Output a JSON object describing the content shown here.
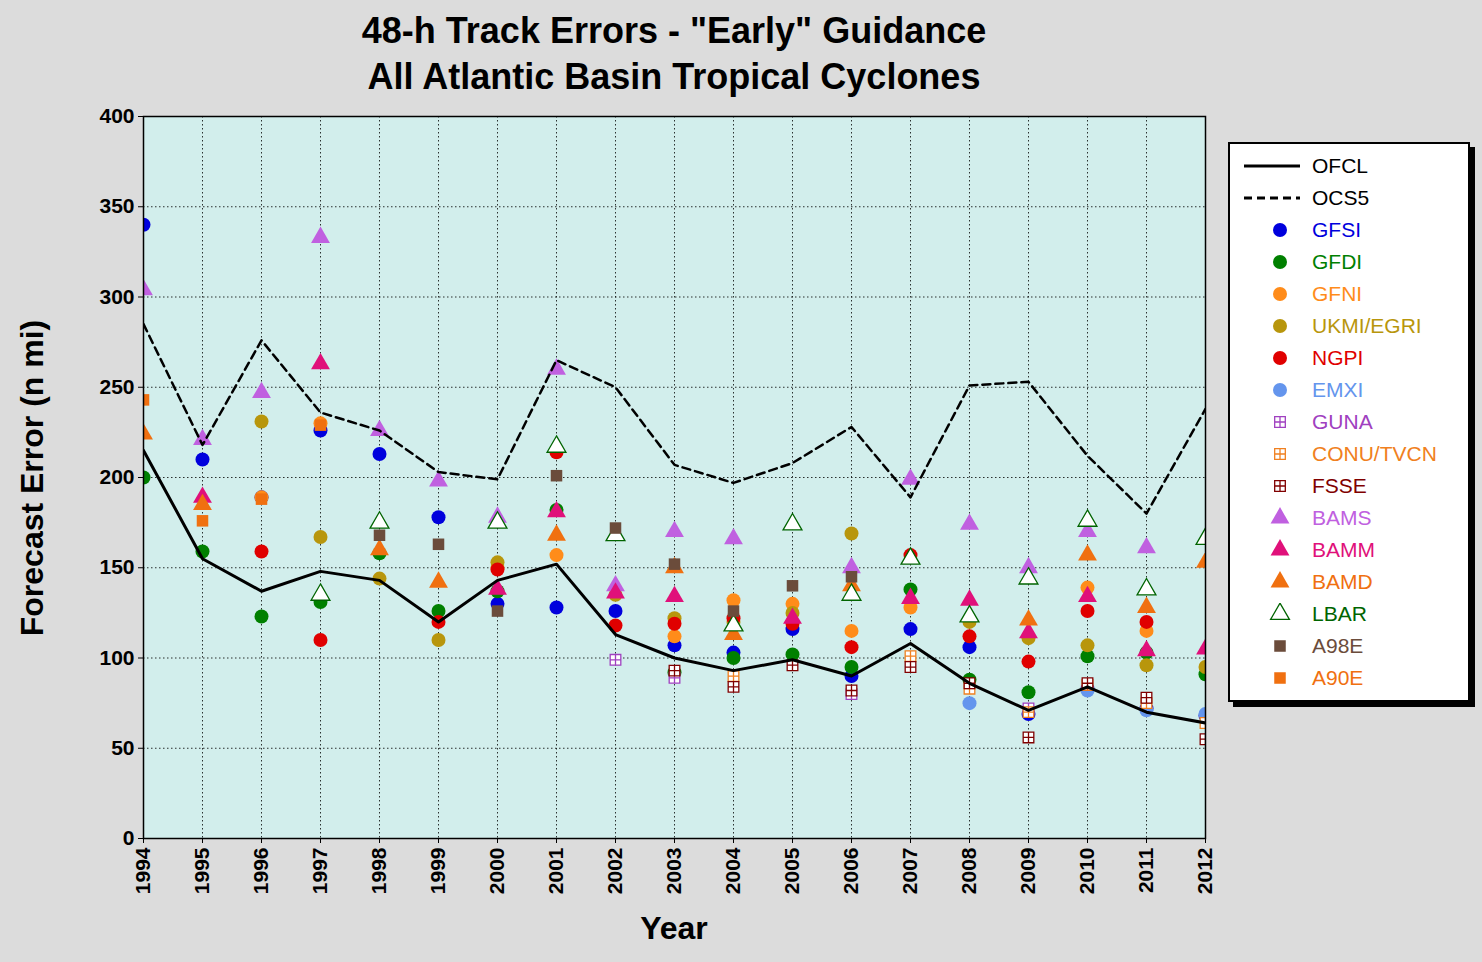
{
  "chart_data": {
    "type": "line",
    "title": "48-h Track Errors - \"Early\" Guidance",
    "subtitle": "All Atlantic Basin Tropical Cyclones",
    "x_label": "Year",
    "y_label": "Forecast Error (n mi)",
    "x": [
      1994,
      1995,
      1996,
      1997,
      1998,
      1999,
      2000,
      2001,
      2002,
      2003,
      2004,
      2005,
      2006,
      2007,
      2008,
      2009,
      2010,
      2011,
      2012
    ],
    "xlim": [
      1994,
      2012
    ],
    "xticks": [
      1994,
      1995,
      1996,
      1997,
      1998,
      1999,
      2000,
      2001,
      2002,
      2003,
      2004,
      2005,
      2006,
      2007,
      2008,
      2009,
      2010,
      2011,
      2012
    ],
    "ylim": [
      0,
      400
    ],
    "yticks": [
      0,
      50,
      100,
      150,
      200,
      250,
      300,
      350,
      400
    ],
    "grid": true,
    "legend": "right",
    "series": [
      {
        "name": "OFCL",
        "type": "line",
        "line_style": "solid",
        "color": "#000000",
        "values": [
          215,
          155,
          137,
          148,
          143,
          120,
          143,
          152,
          113,
          100,
          93,
          99,
          90,
          108,
          86,
          71,
          84,
          70,
          64
        ]
      },
      {
        "name": "OCS5",
        "type": "line",
        "line_style": "dashed",
        "color": "#000000",
        "values": [
          285,
          218,
          276,
          236,
          226,
          203,
          199,
          265,
          250,
          207,
          197,
          208,
          228,
          189,
          251,
          253,
          212,
          180,
          238
        ]
      },
      {
        "name": "GFSI",
        "type": "scatter",
        "marker": "circle",
        "color": "#0000dd",
        "values": [
          340,
          210,
          189,
          226,
          213,
          178,
          130,
          128,
          126,
          107,
          103,
          116,
          90,
          116,
          106,
          69,
          83,
          72,
          68
        ]
      },
      {
        "name": "GFDI",
        "type": "scatter",
        "marker": "circle",
        "color": "#008000",
        "values": [
          200,
          159,
          123,
          131,
          158,
          126,
          137,
          182,
          null,
          92,
          100,
          102,
          95,
          138,
          88,
          81,
          101,
          103,
          91
        ]
      },
      {
        "name": "GFNI",
        "type": "scatter",
        "marker": "circle",
        "color": "#ff8c1a",
        "values": [
          null,
          null,
          189,
          230,
          null,
          null,
          150,
          157,
          null,
          112,
          132,
          130,
          115,
          128,
          null,
          null,
          139,
          115,
          null
        ]
      },
      {
        "name": "UKMI/EGRI",
        "type": "scatter",
        "marker": "circle",
        "color": "#b8960c",
        "values": [
          null,
          null,
          231,
          167,
          144,
          110,
          153,
          null,
          135,
          122,
          120,
          125,
          169,
          null,
          120,
          111,
          107,
          96,
          95
        ]
      },
      {
        "name": "NGPI",
        "type": "scatter",
        "marker": "circle",
        "color": "#e00000",
        "values": [
          null,
          null,
          159,
          110,
          null,
          120,
          149,
          214,
          118,
          119,
          122,
          119,
          106,
          157,
          112,
          98,
          126,
          120,
          null
        ]
      },
      {
        "name": "EMXI",
        "type": "scatter",
        "marker": "circle",
        "color": "#6495ed",
        "values": [
          null,
          null,
          null,
          null,
          null,
          null,
          null,
          null,
          null,
          null,
          null,
          null,
          null,
          null,
          75,
          null,
          82,
          71,
          69
        ]
      },
      {
        "name": "GUNA",
        "type": "scatter",
        "marker": "square_cross",
        "color": "#a040c0",
        "values": [
          null,
          null,
          null,
          null,
          null,
          null,
          null,
          null,
          99,
          89,
          null,
          null,
          80,
          null,
          null,
          72,
          null,
          null,
          null
        ]
      },
      {
        "name": "CONU/TVCN",
        "type": "scatter",
        "marker": "square_cross",
        "color": "#f08020",
        "values": [
          null,
          null,
          null,
          null,
          null,
          null,
          null,
          null,
          null,
          null,
          90,
          null,
          null,
          101,
          83,
          70,
          85,
          75,
          64
        ]
      },
      {
        "name": "FSSE",
        "type": "scatter",
        "marker": "square_cross",
        "color": "#800000",
        "values": [
          null,
          null,
          null,
          null,
          null,
          null,
          null,
          null,
          null,
          93,
          84,
          96,
          82,
          95,
          86,
          56,
          86,
          78,
          55
        ]
      },
      {
        "name": "BAMS",
        "type": "scatter",
        "marker": "triangle",
        "color": "#c060e0",
        "values": [
          304,
          221,
          247,
          333,
          226,
          198,
          178,
          260,
          140,
          170,
          166,
          null,
          150,
          199,
          174,
          150,
          170,
          161,
          null
        ]
      },
      {
        "name": "BAMM",
        "type": "scatter",
        "marker": "triangle",
        "color": "#e0107a",
        "values": [
          null,
          189,
          null,
          263,
          null,
          null,
          138,
          181,
          136,
          134,
          null,
          122,
          null,
          133,
          132,
          114,
          134,
          104,
          105
        ]
      },
      {
        "name": "BAMD",
        "type": "scatter",
        "marker": "triangle",
        "color": "#f07010",
        "values": [
          224,
          185,
          null,
          null,
          160,
          142,
          null,
          168,
          null,
          150,
          113,
          null,
          140,
          null,
          null,
          121,
          157,
          128,
          153
        ]
      },
      {
        "name": "LBAR",
        "type": "scatter",
        "marker": "triangle_open",
        "color": "#006400",
        "values": [
          null,
          null,
          null,
          135,
          175,
          null,
          175,
          217,
          168,
          null,
          118,
          174,
          135,
          155,
          123,
          144,
          176,
          138,
          166
        ]
      },
      {
        "name": "A98E",
        "type": "scatter",
        "marker": "square",
        "color": "#6b4c3b",
        "values": [
          null,
          null,
          null,
          null,
          168,
          163,
          126,
          201,
          172,
          152,
          126,
          140,
          145,
          null,
          null,
          null,
          null,
          null,
          null
        ]
      },
      {
        "name": "A90E",
        "type": "scatter",
        "marker": "square",
        "color": "#f07010",
        "values": [
          243,
          176,
          188,
          229,
          null,
          null,
          null,
          null,
          null,
          null,
          null,
          null,
          null,
          null,
          null,
          null,
          null,
          null,
          null
        ]
      }
    ]
  }
}
